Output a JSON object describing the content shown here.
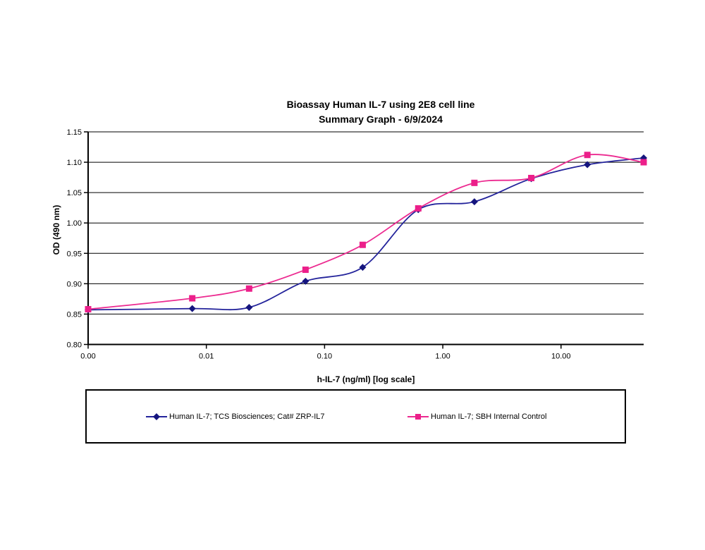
{
  "title": {
    "line1": "Bioassay Human IL-7 using 2E8 cell line",
    "line2": "Summary Graph - 6/9/2024"
  },
  "chart_data": {
    "type": "line",
    "smoothed": true,
    "grid": "horizontal",
    "legend_position": "bottom-box",
    "x_axis": {
      "label": "h-IL-7 (ng/ml) [log scale]",
      "scale": "log",
      "min": 0.001,
      "max": 50,
      "ticks": [
        {
          "value": 0.001,
          "label": "0.00"
        },
        {
          "value": 0.01,
          "label": "0.01"
        },
        {
          "value": 0.1,
          "label": "0.10"
        },
        {
          "value": 1,
          "label": "1.00"
        },
        {
          "value": 10,
          "label": "10.00"
        }
      ]
    },
    "y_axis": {
      "label": "OD (490 nm)",
      "min": 0.8,
      "max": 1.15,
      "tick_step": 0.05,
      "ticks": [
        {
          "value": 1.15,
          "label": "1.15"
        },
        {
          "value": 1.1,
          "label": "1.10"
        },
        {
          "value": 1.05,
          "label": "1.05"
        },
        {
          "value": 1.0,
          "label": "1.00"
        },
        {
          "value": 0.95,
          "label": "0.95"
        },
        {
          "value": 0.9,
          "label": "0.90"
        },
        {
          "value": 0.85,
          "label": "0.85"
        },
        {
          "value": 0.8,
          "label": "0.80"
        }
      ]
    },
    "x": [
      0,
      0.0076,
      0.023,
      0.069,
      0.21,
      0.62,
      1.85,
      5.6,
      16.7,
      50
    ],
    "series": [
      {
        "name": "Human IL-7; TCS Biosciences; Cat# ZRP-IL7",
        "marker": "diamond",
        "color": "#23239b",
        "marker_color": "#15157e",
        "values": [
          0.857,
          0.859,
          0.861,
          0.904,
          0.927,
          1.022,
          1.035,
          1.073,
          1.096,
          1.107
        ]
      },
      {
        "name": "Human IL-7; SBH Internal Control",
        "marker": "square",
        "color": "#ec2a90",
        "marker_color": "#ec1f8a",
        "values": [
          0.858,
          0.876,
          0.892,
          0.923,
          0.964,
          1.024,
          1.066,
          1.074,
          1.112,
          1.1
        ]
      }
    ]
  }
}
